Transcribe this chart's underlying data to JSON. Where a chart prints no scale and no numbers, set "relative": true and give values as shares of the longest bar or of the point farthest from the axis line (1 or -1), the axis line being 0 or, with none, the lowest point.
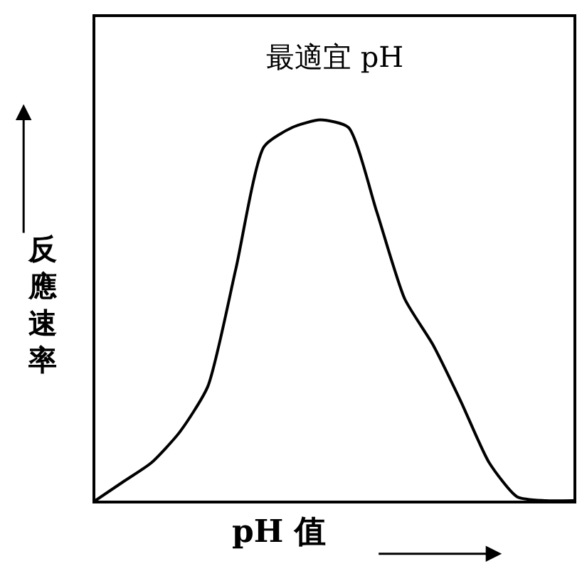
{
  "chart_data": {
    "type": "line",
    "relative": true,
    "xlabel": "pH 值",
    "ylabel": "反應速率",
    "annotations": [
      "最適宜 pH"
    ],
    "categories": [
      null,
      null,
      null,
      null,
      null,
      null,
      null,
      null,
      null,
      null,
      null,
      null,
      null,
      null,
      null,
      null,
      null,
      null
    ],
    "series": [
      {
        "color": "#000000",
        "values": [
          0,
          0.05,
          0.1,
          0.18,
          0.3,
          0.61,
          0.93,
          0.98,
          1,
          0.98,
          0.76,
          0.53,
          0.41,
          0.26,
          0.1,
          0.01,
          0,
          0
        ]
      }
    ],
    "marker": "none",
    "line_style": "solid"
  }
}
